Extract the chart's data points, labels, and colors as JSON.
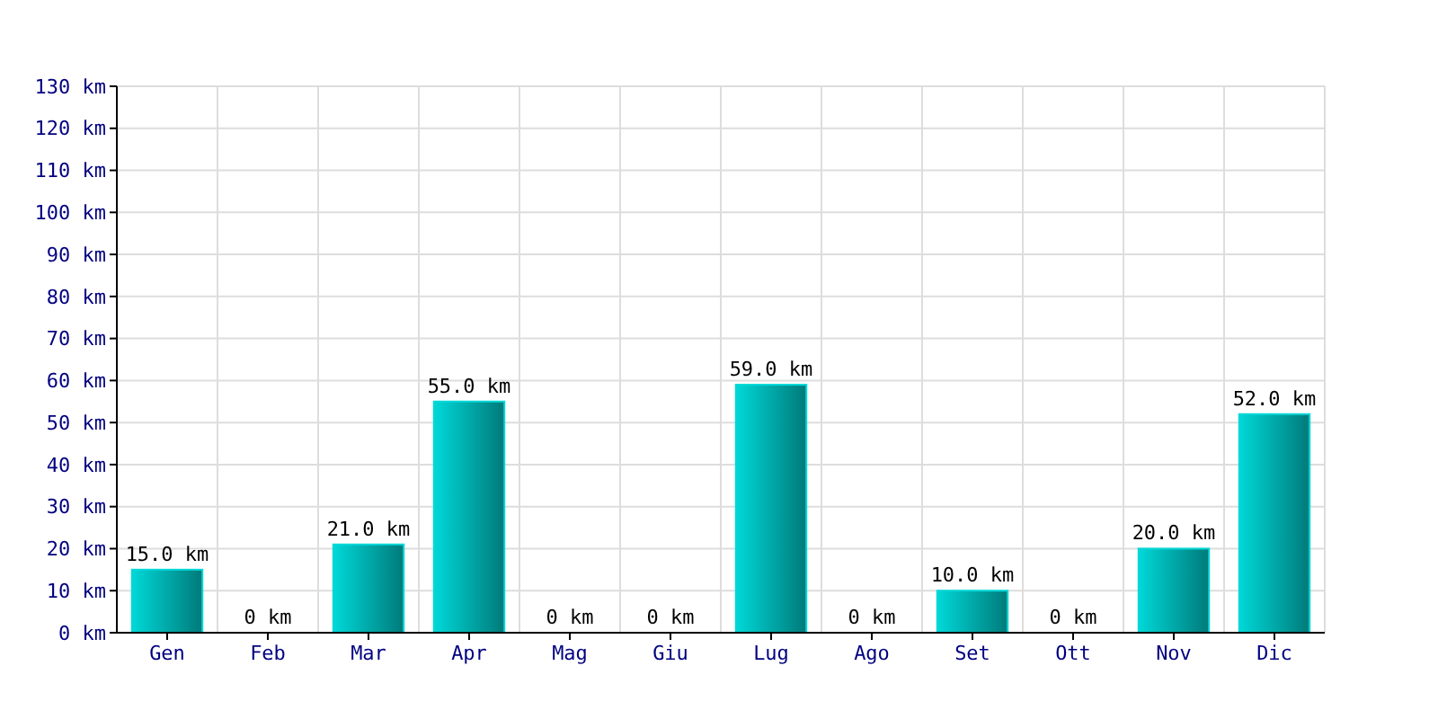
{
  "chart_data": {
    "type": "bar",
    "categories": [
      "Gen",
      "Feb",
      "Mar",
      "Apr",
      "Mag",
      "Giu",
      "Lug",
      "Ago",
      "Set",
      "Ott",
      "Nov",
      "Dic"
    ],
    "values": [
      15,
      0,
      21,
      55,
      0,
      0,
      59,
      0,
      10,
      0,
      20,
      52
    ],
    "value_labels": [
      "15.0 km",
      "0 km",
      "21.0 km",
      "55.0 km",
      "0 km",
      "0 km",
      "59.0 km",
      "0 km",
      "10.0 km",
      "0 km",
      "20.0 km",
      "52.0 km"
    ],
    "color": "#00d8d8",
    "ylim": [
      0,
      130
    ],
    "yticks": [
      {
        "value": 0,
        "label": "0 km"
      },
      {
        "value": 10,
        "label": "10 km"
      },
      {
        "value": 20,
        "label": "20 km"
      },
      {
        "value": 30,
        "label": "30 km"
      },
      {
        "value": 40,
        "label": "40 km"
      },
      {
        "value": 50,
        "label": "50 km"
      },
      {
        "value": 60,
        "label": "60 km"
      },
      {
        "value": 70,
        "label": "70 km"
      },
      {
        "value": 80,
        "label": "80 km"
      },
      {
        "value": 90,
        "label": "90 km"
      },
      {
        "value": 100,
        "label": "100 km"
      },
      {
        "value": 110,
        "label": "110 km"
      },
      {
        "value": 120,
        "label": "120 km"
      },
      {
        "value": 130,
        "label": "130 km"
      }
    ],
    "grid": true
  }
}
